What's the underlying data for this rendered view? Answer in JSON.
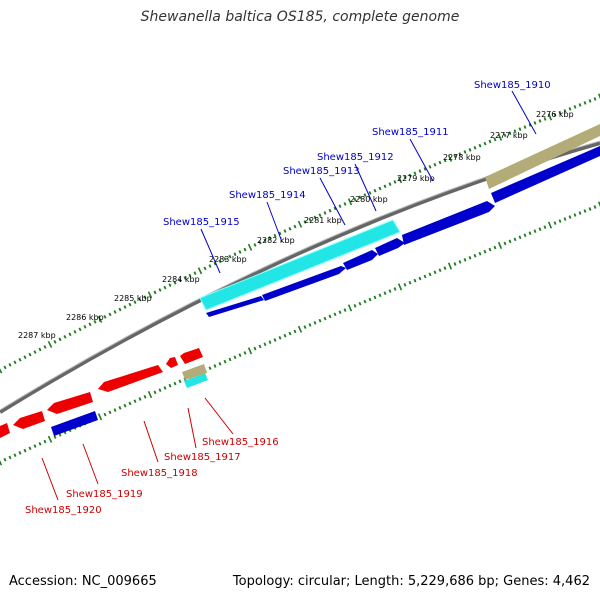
{
  "title": "Shewanella baltica OS185, complete genome",
  "footer": {
    "accession": "Accession: NC_009665",
    "stats": "Topology: circular; Length: 5,229,686 bp; Genes: 4,462"
  },
  "colors": {
    "backbone": "#7a7a7a",
    "ticks": "#1f7a1f",
    "forward_gene": "#0000cc",
    "reverse_gene": "#e00000",
    "cyan_gene": "#22e6e6",
    "tan_gene": "#b4ac78",
    "label_forward": "#0000cc",
    "label_reverse": "#cc0000"
  },
  "scale": {
    "kbp_labels": [
      "2276 kbp",
      "2277 kbp",
      "2278 kbp",
      "2279 kbp",
      "2280 kbp",
      "2281 kbp",
      "2282 kbp",
      "2283 kbp",
      "2284 kbp",
      "2285 kbp",
      "2286 kbp",
      "2287 kbp"
    ]
  },
  "gene_labels": {
    "forward": [
      "Shew185_1910",
      "Shew185_1911",
      "Shew185_1912",
      "Shew185_1913",
      "Shew185_1914",
      "Shew185_1915"
    ],
    "reverse": [
      "Shew185_1916",
      "Shew185_1917",
      "Shew185_1918",
      "Shew185_1919",
      "Shew185_1920"
    ]
  }
}
